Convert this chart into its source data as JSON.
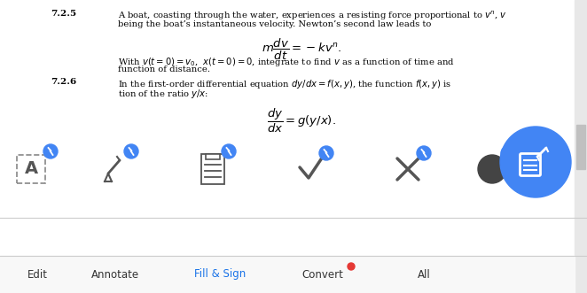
{
  "bg_color": "#ffffff",
  "text_color": "#000000",
  "section_725_label": "7.2.5",
  "section_726_label": "7.2.6",
  "section_725_line1": "A boat, coasting through the water, experiences a resisting force proportional to $v^n$, $v$",
  "section_725_line2": "being the boat’s instantaneous velocity. Newton’s second law leads to",
  "equation_1": "$m\\dfrac{dv}{dt} = -kv^n.$",
  "section_725_line3": "With $v(t = 0) = v_0$,  $x(t = 0) = 0$, integrate to find $v$ as a function of time and",
  "section_725_line4": "function of distance.",
  "section_726_line1": "In the first-order differential equation $dy/dx = f(x, y)$, the function $f(x, y)$ is",
  "section_726_line2": "tion of the ratio $y/x$:",
  "equation_2": "$\\dfrac{dy}{dx} = g(y/x).$",
  "toolbar_labels": [
    "Edit",
    "Annotate",
    "Fill & Sign",
    "Convert",
    "All"
  ],
  "toolbar_fill_sign_color": "#1a73e8",
  "circle_color": "#4285f4",
  "convert_dot_color": "#e53935",
  "icon_badge_color": "#4285f4",
  "sep_line_color": "#cccccc",
  "scrollbar_color": "#c0c0c0",
  "icon_color": "#555555",
  "toolbar_bg": "#f8f8f8"
}
